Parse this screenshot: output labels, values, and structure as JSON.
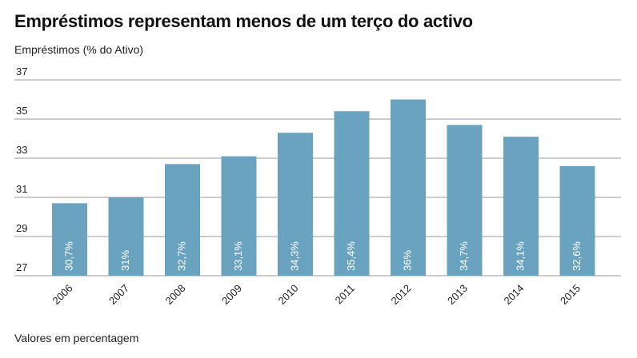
{
  "header": {
    "title": "Empréstimos representam menos de um terço do activo",
    "subtitle": "Empréstimos (% do Ativo)"
  },
  "footer": {
    "note": "Valores em percentagem"
  },
  "colors": {
    "bar": "#6aa3bf",
    "grid": "#9a9a9a",
    "text": "#222222"
  },
  "chart_data": {
    "type": "bar",
    "title": "Empréstimos representam menos de um terço do activo",
    "ylabel": "Empréstimos (% do Ativo)",
    "xlabel": "",
    "categories": [
      "2006",
      "2007",
      "2008",
      "2009",
      "2010",
      "2011",
      "2012",
      "2013",
      "2014",
      "2015"
    ],
    "values": [
      30.7,
      31,
      32.7,
      33.1,
      34.3,
      35.4,
      36,
      34.7,
      34.1,
      32.6
    ],
    "value_labels": [
      "30,7%",
      "31%",
      "32,7%",
      "33,1%",
      "34,3%",
      "35,4%",
      "36%",
      "34,7%",
      "34,1%",
      "32,6%"
    ],
    "yticks": [
      "27",
      "29",
      "31",
      "33",
      "35",
      "37"
    ],
    "ylim": [
      27,
      37
    ],
    "grid": true,
    "legend": "none"
  }
}
